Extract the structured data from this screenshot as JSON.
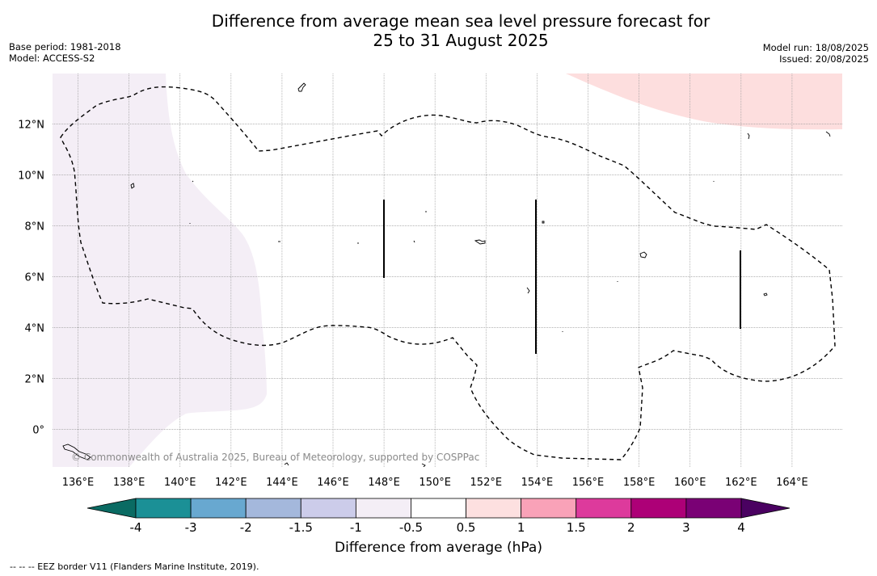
{
  "title": {
    "line1": "Difference from average mean sea level pressure forecast for",
    "line2": "25 to 31 August 2025"
  },
  "meta_left": {
    "base_period": "Base period: 1981-2018",
    "model": "Model: ACCESS-S2"
  },
  "meta_right": {
    "model_run": "Model run: 18/08/2025",
    "issued": "Issued: 20/08/2025"
  },
  "map": {
    "lon_ticks": [
      "136°E",
      "138°E",
      "140°E",
      "142°E",
      "144°E",
      "146°E",
      "148°E",
      "150°E",
      "152°E",
      "154°E",
      "156°E",
      "158°E",
      "160°E",
      "162°E",
      "164°E"
    ],
    "lat_ticks": [
      "12°N",
      "10°N",
      "8°N",
      "6°N",
      "4°N",
      "2°N",
      "0°"
    ],
    "copyright": "© Commonwealth of Australia 2025, Bureau of Meteorology, supported by COSPPac",
    "region_west_color": "#f4eef6",
    "region_northeast_color": "#fddede",
    "eez_line_style": "dashed"
  },
  "colorbar": {
    "title": "Difference from average (hPa)",
    "tick_labels": [
      "-4",
      "-3",
      "-2",
      "-1.5",
      "-1",
      "-0.5",
      "0.5",
      "1",
      "1.5",
      "2",
      "3",
      "4"
    ],
    "colors": [
      "#1b9096",
      "#68a8d0",
      "#a4b8dc",
      "#ccccea",
      "#f4eef6",
      "#ffffff",
      "#fde0e0",
      "#f9a2b8",
      "#dd3a9c",
      "#ad0077",
      "#7a0175"
    ],
    "low_extend_color": "#0a6b63",
    "high_extend_color": "#4a0161"
  },
  "footnote": "--  --  -- EEZ border V11 (Flanders Marine Institute, 2019)."
}
